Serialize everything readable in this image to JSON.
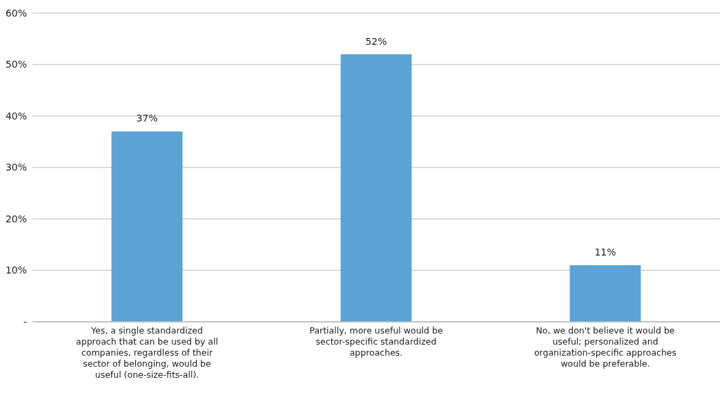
{
  "chart_data": {
    "type": "bar",
    "categories": [
      "Yes, a single standardized approach that can be used by all companies, regardless of their sector of belonging, would be useful (one-size-fits-all).",
      "Partially, more useful would be sector-specific standardized approaches.",
      "No, we don't believe it would be useful; personalized and organization-specific approaches would be preferable."
    ],
    "values": [
      37,
      52,
      11
    ],
    "value_labels": [
      "37%",
      "52%",
      "11%"
    ],
    "color": "#5ba3d5",
    "ylim": [
      0,
      60
    ],
    "yticks": [
      {
        "value": 0,
        "label": "-"
      },
      {
        "value": 10,
        "label": "10%"
      },
      {
        "value": 20,
        "label": "20%"
      },
      {
        "value": 30,
        "label": "30%"
      },
      {
        "value": 40,
        "label": "40%"
      },
      {
        "value": 50,
        "label": "50%"
      },
      {
        "value": 60,
        "label": "60%"
      }
    ],
    "grid": "y"
  }
}
